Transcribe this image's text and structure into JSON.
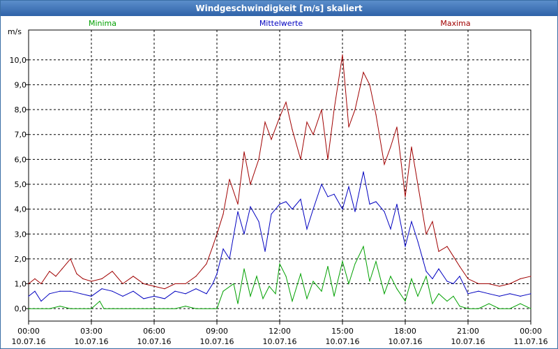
{
  "window": {
    "title": "Windgeschwindigkeit [m/s] skaliert"
  },
  "chart_data": {
    "type": "line",
    "title": "Windgeschwindigkeit [m/s] skaliert",
    "ylabel": "m/s",
    "xlabel": "",
    "ylim": [
      -0.5,
      11.2
    ],
    "xlim": [
      0,
      24
    ],
    "grid": true,
    "y_ticks": [
      "0,0",
      "1,0",
      "2,0",
      "3,0",
      "4,0",
      "5,0",
      "6,0",
      "7,0",
      "8,0",
      "9,0",
      "10,0"
    ],
    "x_ticks": [
      {
        "time": "00:00",
        "date": "10.07.16"
      },
      {
        "time": "03:00",
        "date": "10.07.16"
      },
      {
        "time": "06:00",
        "date": "10.07.16"
      },
      {
        "time": "09:00",
        "date": "10.07.16"
      },
      {
        "time": "12:00",
        "date": "10.07.16"
      },
      {
        "time": "15:00",
        "date": "10.07.16"
      },
      {
        "time": "18:00",
        "date": "10.07.16"
      },
      {
        "time": "21:00",
        "date": "10.07.16"
      },
      {
        "time": "00:00",
        "date": "11.07.16"
      }
    ],
    "series": [
      {
        "name": "Minima",
        "color": "#00a000",
        "x": [
          0,
          1,
          1.5,
          2,
          3,
          3.4,
          3.6,
          4,
          5,
          6,
          7,
          7.5,
          8,
          9,
          9.3,
          9.8,
          10,
          10.3,
          10.6,
          10.9,
          11.2,
          11.5,
          11.8,
          12,
          12.3,
          12.6,
          13,
          13.3,
          13.6,
          14,
          14.3,
          14.6,
          15,
          15.3,
          15.6,
          16,
          16.3,
          16.6,
          17,
          17.3,
          17.6,
          18,
          18.3,
          18.6,
          19,
          19.3,
          19.6,
          20,
          20.3,
          20.6,
          21,
          21.5,
          22,
          22.5,
          23,
          23.5,
          24
        ],
        "values": [
          0,
          0,
          0.1,
          0,
          0,
          0.3,
          0,
          0,
          0,
          0,
          0,
          0.1,
          0,
          0,
          0.7,
          1,
          0.2,
          1.6,
          0.5,
          1.3,
          0.4,
          0.9,
          0.6,
          1.8,
          1.3,
          0.3,
          1.4,
          0.4,
          1.1,
          0.7,
          1.7,
          0.5,
          1.9,
          1.0,
          1.8,
          2.5,
          1.1,
          1.9,
          0.6,
          1.3,
          0.8,
          0.3,
          1.2,
          0.5,
          1.3,
          0.2,
          0.6,
          0.3,
          0.5,
          0.1,
          0,
          0,
          0.2,
          0,
          0,
          0.2,
          0
        ]
      },
      {
        "name": "Mittelwerte",
        "color": "#0000c0",
        "x": [
          0,
          0.3,
          0.6,
          1,
          1.5,
          2,
          2.5,
          3,
          3.5,
          4,
          4.5,
          5,
          5.5,
          6,
          6.5,
          7,
          7.5,
          8,
          8.5,
          8.8,
          9,
          9.3,
          9.6,
          10,
          10.3,
          10.6,
          11,
          11.3,
          11.6,
          12,
          12.3,
          12.6,
          13,
          13.3,
          13.6,
          14,
          14.3,
          14.6,
          15,
          15.3,
          15.6,
          16,
          16.3,
          16.6,
          17,
          17.3,
          17.6,
          18,
          18.3,
          18.6,
          19,
          19.3,
          19.6,
          20,
          20.3,
          20.6,
          21,
          21.5,
          22,
          22.5,
          23,
          23.5,
          24
        ],
        "values": [
          0.5,
          0.7,
          0.3,
          0.6,
          0.7,
          0.7,
          0.6,
          0.5,
          0.8,
          0.7,
          0.5,
          0.7,
          0.4,
          0.5,
          0.4,
          0.7,
          0.6,
          0.8,
          0.6,
          1.0,
          1.4,
          2.4,
          2.0,
          3.9,
          3.0,
          4.1,
          3.5,
          2.3,
          3.8,
          4.2,
          4.3,
          4.0,
          4.4,
          3.2,
          4.0,
          5.0,
          4.5,
          4.6,
          4.0,
          4.9,
          3.9,
          5.5,
          4.2,
          4.3,
          3.9,
          3.2,
          4.2,
          2.5,
          3.5,
          2.7,
          1.5,
          1.2,
          1.6,
          1.1,
          1.0,
          1.3,
          0.6,
          0.7,
          0.6,
          0.5,
          0.6,
          0.5,
          0.6
        ]
      },
      {
        "name": "Maxima",
        "color": "#a00000",
        "x": [
          0,
          0.3,
          0.6,
          1,
          1.3,
          1.6,
          2,
          2.3,
          2.6,
          3,
          3.5,
          4,
          4.5,
          5,
          5.5,
          6,
          6.5,
          7,
          7.5,
          8,
          8.5,
          8.8,
          9,
          9.3,
          9.6,
          10,
          10.3,
          10.6,
          11,
          11.3,
          11.6,
          12,
          12.3,
          12.6,
          13,
          13.3,
          13.6,
          14,
          14.3,
          14.6,
          15,
          15.3,
          15.6,
          16,
          16.3,
          16.6,
          17,
          17.3,
          17.6,
          18,
          18.3,
          18.6,
          19,
          19.3,
          19.6,
          20,
          20.3,
          20.6,
          21,
          21.5,
          22,
          22.5,
          23,
          23.5,
          24
        ],
        "values": [
          1.0,
          1.2,
          1.0,
          1.5,
          1.3,
          1.6,
          2.0,
          1.4,
          1.2,
          1.1,
          1.2,
          1.5,
          1.0,
          1.3,
          1.0,
          0.9,
          0.8,
          1.0,
          1.0,
          1.3,
          1.8,
          2.5,
          3.0,
          3.8,
          5.2,
          4.2,
          6.3,
          5.0,
          6.0,
          7.5,
          6.8,
          7.7,
          8.3,
          7.2,
          6.0,
          7.5,
          7.0,
          8.0,
          6.0,
          8.0,
          10.2,
          7.3,
          8.0,
          9.5,
          9.0,
          7.8,
          5.8,
          6.5,
          7.3,
          4.5,
          6.5,
          5.0,
          3.0,
          3.5,
          2.3,
          2.5,
          2.1,
          1.7,
          1.2,
          1.0,
          1.0,
          0.9,
          1.0,
          1.2,
          1.3
        ]
      }
    ]
  }
}
